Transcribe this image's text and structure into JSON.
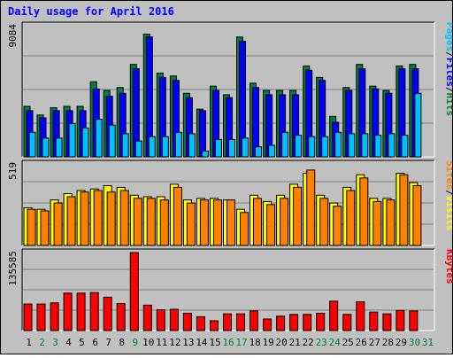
{
  "title": "Daily usage for April 2016",
  "colors": {
    "background": "#c0c0c0",
    "plot_bg": "#c0c0c0",
    "title": "#0000ff",
    "hits": "#008040",
    "files": "#0000ff",
    "pages": "#00c0ff",
    "visits": "#ffff00",
    "sites": "#ff8000",
    "kbytes": "#ff0000",
    "weekday_label": "#000000",
    "weekend_label": "#008040"
  },
  "days": [
    "1",
    "2",
    "3",
    "4",
    "5",
    "6",
    "7",
    "8",
    "9",
    "10",
    "11",
    "12",
    "13",
    "14",
    "15",
    "16",
    "17",
    "18",
    "19",
    "20",
    "21",
    "22",
    "23",
    "24",
    "25",
    "26",
    "27",
    "28",
    "29",
    "30",
    "31"
  ],
  "weekend_days": [
    2,
    3,
    9,
    16,
    17,
    23,
    24,
    30,
    31
  ],
  "chart_data": [
    {
      "type": "bar",
      "panel": "top",
      "ylabel_max": "9084",
      "ylim": [
        0,
        9084
      ],
      "legend": [
        {
          "text": "Pages",
          "color_key": "pages"
        },
        {
          "text": "/",
          "color_key": "weekday_label"
        },
        {
          "text": "Files",
          "color_key": "files"
        },
        {
          "text": "/",
          "color_key": "weekday_label"
        },
        {
          "text": "Hits",
          "color_key": "hits"
        }
      ],
      "series": [
        {
          "name": "Hits",
          "color_key": "hits",
          "values": [
            3500,
            2900,
            3400,
            3500,
            3500,
            5200,
            4600,
            4800,
            6400,
            8500,
            5800,
            5600,
            4400,
            3300,
            4900,
            4300,
            8300,
            5100,
            4600,
            4600,
            4600,
            6300,
            5500,
            2800,
            4800,
            6400,
            4900,
            4600,
            6300,
            6400,
            null
          ]
        },
        {
          "name": "Files",
          "color_key": "files",
          "values": [
            3200,
            2700,
            3200,
            3200,
            3200,
            4700,
            4200,
            4400,
            6100,
            8300,
            5500,
            5300,
            4100,
            3200,
            4600,
            4100,
            8000,
            4800,
            4300,
            4300,
            4300,
            6000,
            5300,
            2400,
            4600,
            6100,
            4700,
            4400,
            6100,
            6100,
            null
          ]
        },
        {
          "name": "Pages",
          "color_key": "pages",
          "values": [
            1700,
            1300,
            1300,
            2300,
            2000,
            2600,
            2200,
            1600,
            1100,
            1400,
            1400,
            1700,
            1600,
            400,
            1200,
            1200,
            1300,
            700,
            800,
            1700,
            1500,
            1400,
            1400,
            1700,
            1600,
            1600,
            1500,
            1600,
            1500,
            4400,
            null
          ]
        }
      ]
    },
    {
      "type": "bar",
      "panel": "middle",
      "ylabel_max": "519",
      "ylim": [
        0,
        519
      ],
      "legend": [
        {
          "text": "Sites",
          "color_key": "sites"
        },
        {
          "text": "/",
          "color_key": "weekday_label"
        },
        {
          "text": "Visits",
          "color_key": "visits"
        }
      ],
      "series": [
        {
          "name": "Visits",
          "color_key": "visits",
          "values": [
            240,
            230,
            290,
            330,
            350,
            360,
            380,
            370,
            320,
            310,
            310,
            390,
            290,
            300,
            300,
            290,
            230,
            320,
            280,
            320,
            390,
            460,
            320,
            270,
            370,
            450,
            300,
            300,
            460,
            400,
            null
          ]
        },
        {
          "name": "Sites",
          "color_key": "sites",
          "values": [
            230,
            220,
            270,
            310,
            340,
            350,
            340,
            350,
            300,
            300,
            290,
            370,
            270,
            290,
            290,
            290,
            210,
            300,
            260,
            300,
            370,
            480,
            300,
            250,
            350,
            430,
            280,
            290,
            450,
            380,
            null
          ]
        }
      ]
    },
    {
      "type": "bar",
      "panel": "bottom",
      "ylabel_max": "135585",
      "ylim": [
        0,
        135585
      ],
      "legend": [
        {
          "text": "KBytes",
          "color_key": "kbytes"
        }
      ],
      "series": [
        {
          "name": "KBytes",
          "color_key": "kbytes",
          "values": [
            46000,
            46000,
            48000,
            65000,
            65000,
            66000,
            58000,
            47000,
            135585,
            44000,
            36000,
            37000,
            30000,
            24000,
            17000,
            29000,
            29000,
            34000,
            20000,
            25000,
            28000,
            28000,
            30000,
            51000,
            28000,
            50000,
            32000,
            29000,
            35000,
            34000,
            null
          ]
        }
      ]
    }
  ]
}
